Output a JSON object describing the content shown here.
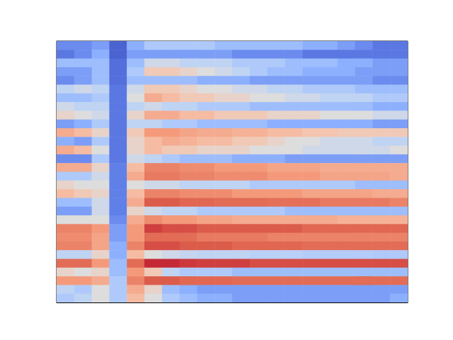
{
  "chart_data": {
    "type": "heatmap",
    "xlim": [
      0,
      20
    ],
    "ylim": [
      0,
      30
    ],
    "zlim": [
      0,
      1
    ],
    "tick_labels": false,
    "cells": [
      [
        0.15,
        0.15,
        0.2,
        0.05,
        0.25,
        0.35,
        0.35,
        0.35,
        0.35,
        0.3,
        0.3,
        0.3,
        0.3,
        0.3,
        0.25,
        0.25,
        0.2,
        0.15,
        0.1,
        0.1
      ],
      [
        0.1,
        0.15,
        0.25,
        0.05,
        0.2,
        0.2,
        0.2,
        0.2,
        0.2,
        0.2,
        0.15,
        0.15,
        0.15,
        0.15,
        0.1,
        0.1,
        0.1,
        0.1,
        0.1,
        0.1
      ],
      [
        0.3,
        0.3,
        0.3,
        0.08,
        0.3,
        0.45,
        0.45,
        0.4,
        0.4,
        0.4,
        0.35,
        0.35,
        0.35,
        0.3,
        0.3,
        0.3,
        0.25,
        0.25,
        0.2,
        0.2
      ],
      [
        0.2,
        0.2,
        0.3,
        0.08,
        0.35,
        0.6,
        0.6,
        0.55,
        0.5,
        0.45,
        0.4,
        0.35,
        0.3,
        0.3,
        0.25,
        0.25,
        0.25,
        0.2,
        0.2,
        0.2
      ],
      [
        0.15,
        0.2,
        0.3,
        0.08,
        0.3,
        0.3,
        0.3,
        0.3,
        0.25,
        0.25,
        0.25,
        0.2,
        0.2,
        0.2,
        0.2,
        0.2,
        0.2,
        0.2,
        0.15,
        0.15
      ],
      [
        0.4,
        0.45,
        0.4,
        0.1,
        0.45,
        0.6,
        0.6,
        0.55,
        0.5,
        0.5,
        0.45,
        0.45,
        0.4,
        0.4,
        0.35,
        0.35,
        0.35,
        0.3,
        0.3,
        0.3
      ],
      [
        0.3,
        0.3,
        0.35,
        0.1,
        0.5,
        0.7,
        0.65,
        0.6,
        0.6,
        0.55,
        0.55,
        0.5,
        0.5,
        0.45,
        0.45,
        0.4,
        0.4,
        0.4,
        0.35,
        0.35
      ],
      [
        0.45,
        0.4,
        0.4,
        0.1,
        0.4,
        0.45,
        0.4,
        0.4,
        0.35,
        0.35,
        0.35,
        0.3,
        0.3,
        0.3,
        0.3,
        0.3,
        0.3,
        0.3,
        0.25,
        0.25
      ],
      [
        0.55,
        0.5,
        0.45,
        0.1,
        0.55,
        0.7,
        0.7,
        0.65,
        0.65,
        0.6,
        0.6,
        0.6,
        0.55,
        0.55,
        0.55,
        0.5,
        0.5,
        0.5,
        0.45,
        0.45
      ],
      [
        0.2,
        0.25,
        0.35,
        0.1,
        0.4,
        0.4,
        0.35,
        0.35,
        0.3,
        0.3,
        0.3,
        0.3,
        0.25,
        0.25,
        0.25,
        0.25,
        0.25,
        0.25,
        0.2,
        0.2
      ],
      [
        0.7,
        0.65,
        0.55,
        0.1,
        0.6,
        0.75,
        0.75,
        0.72,
        0.7,
        0.7,
        0.68,
        0.68,
        0.65,
        0.65,
        0.62,
        0.62,
        0.6,
        0.6,
        0.6,
        0.6
      ],
      [
        0.25,
        0.2,
        0.35,
        0.1,
        0.55,
        0.65,
        0.7,
        0.68,
        0.65,
        0.65,
        0.6,
        0.6,
        0.55,
        0.5,
        0.5,
        0.45,
        0.45,
        0.45,
        0.4,
        0.4
      ],
      [
        0.7,
        0.65,
        0.5,
        0.1,
        0.55,
        0.65,
        0.6,
        0.6,
        0.55,
        0.55,
        0.55,
        0.5,
        0.5,
        0.5,
        0.45,
        0.45,
        0.45,
        0.45,
        0.45,
        0.5
      ],
      [
        0.15,
        0.15,
        0.35,
        0.1,
        0.45,
        0.4,
        0.35,
        0.3,
        0.3,
        0.3,
        0.25,
        0.25,
        0.25,
        0.2,
        0.2,
        0.2,
        0.2,
        0.2,
        0.2,
        0.2
      ],
      [
        0.7,
        0.7,
        0.55,
        0.12,
        0.65,
        0.8,
        0.8,
        0.78,
        0.78,
        0.75,
        0.75,
        0.75,
        0.72,
        0.72,
        0.72,
        0.7,
        0.7,
        0.7,
        0.7,
        0.7
      ],
      [
        0.35,
        0.35,
        0.45,
        0.12,
        0.7,
        0.82,
        0.82,
        0.8,
        0.8,
        0.78,
        0.78,
        0.78,
        0.75,
        0.75,
        0.75,
        0.72,
        0.72,
        0.72,
        0.72,
        0.7
      ],
      [
        0.55,
        0.5,
        0.5,
        0.12,
        0.5,
        0.45,
        0.45,
        0.4,
        0.4,
        0.4,
        0.4,
        0.35,
        0.35,
        0.35,
        0.35,
        0.35,
        0.35,
        0.3,
        0.3,
        0.3
      ],
      [
        0.65,
        0.6,
        0.55,
        0.12,
        0.65,
        0.8,
        0.8,
        0.78,
        0.78,
        0.78,
        0.75,
        0.75,
        0.75,
        0.75,
        0.72,
        0.72,
        0.72,
        0.72,
        0.7,
        0.7
      ],
      [
        0.3,
        0.3,
        0.45,
        0.12,
        0.7,
        0.88,
        0.88,
        0.86,
        0.86,
        0.85,
        0.85,
        0.85,
        0.84,
        0.84,
        0.84,
        0.82,
        0.82,
        0.82,
        0.82,
        0.8
      ],
      [
        0.2,
        0.2,
        0.45,
        0.12,
        0.55,
        0.45,
        0.4,
        0.4,
        0.35,
        0.35,
        0.35,
        0.35,
        0.35,
        0.3,
        0.3,
        0.3,
        0.3,
        0.3,
        0.3,
        0.3
      ],
      [
        0.5,
        0.5,
        0.5,
        0.15,
        0.7,
        0.78,
        0.75,
        0.75,
        0.72,
        0.72,
        0.7,
        0.7,
        0.7,
        0.7,
        0.7,
        0.7,
        0.68,
        0.68,
        0.68,
        0.68
      ],
      [
        0.8,
        0.8,
        0.75,
        0.2,
        0.75,
        0.92,
        0.9,
        0.9,
        0.88,
        0.88,
        0.88,
        0.88,
        0.88,
        0.88,
        0.86,
        0.86,
        0.86,
        0.86,
        0.86,
        0.86
      ],
      [
        0.78,
        0.78,
        0.72,
        0.2,
        0.75,
        0.85,
        0.85,
        0.85,
        0.82,
        0.82,
        0.82,
        0.82,
        0.8,
        0.8,
        0.8,
        0.8,
        0.8,
        0.8,
        0.8,
        0.8
      ],
      [
        0.8,
        0.8,
        0.72,
        0.25,
        0.8,
        0.9,
        0.9,
        0.88,
        0.88,
        0.88,
        0.86,
        0.86,
        0.86,
        0.86,
        0.85,
        0.85,
        0.85,
        0.85,
        0.85,
        0.85
      ],
      [
        0.4,
        0.4,
        0.55,
        0.25,
        0.65,
        0.5,
        0.45,
        0.42,
        0.4,
        0.4,
        0.4,
        0.38,
        0.38,
        0.38,
        0.36,
        0.36,
        0.36,
        0.36,
        0.35,
        0.35
      ],
      [
        0.85,
        0.85,
        0.75,
        0.3,
        0.85,
        0.95,
        0.95,
        0.93,
        0.92,
        0.92,
        0.92,
        0.9,
        0.9,
        0.9,
        0.9,
        0.9,
        0.9,
        0.9,
        0.9,
        0.9
      ],
      [
        0.55,
        0.5,
        0.55,
        0.3,
        0.75,
        0.6,
        0.4,
        0.35,
        0.35,
        0.35,
        0.3,
        0.3,
        0.3,
        0.3,
        0.3,
        0.3,
        0.3,
        0.3,
        0.3,
        0.3
      ],
      [
        0.75,
        0.75,
        0.7,
        0.35,
        0.8,
        0.88,
        0.88,
        0.86,
        0.86,
        0.86,
        0.85,
        0.85,
        0.85,
        0.85,
        0.85,
        0.85,
        0.85,
        0.85,
        0.85,
        0.85
      ],
      [
        0.4,
        0.35,
        0.5,
        0.35,
        0.7,
        0.55,
        0.3,
        0.25,
        0.2,
        0.2,
        0.2,
        0.2,
        0.2,
        0.2,
        0.2,
        0.2,
        0.2,
        0.2,
        0.2,
        0.2
      ],
      [
        0.35,
        0.4,
        0.5,
        0.35,
        0.65,
        0.5,
        0.35,
        0.3,
        0.25,
        0.25,
        0.2,
        0.2,
        0.2,
        0.2,
        0.2,
        0.2,
        0.2,
        0.2,
        0.2,
        0.25
      ]
    ]
  }
}
